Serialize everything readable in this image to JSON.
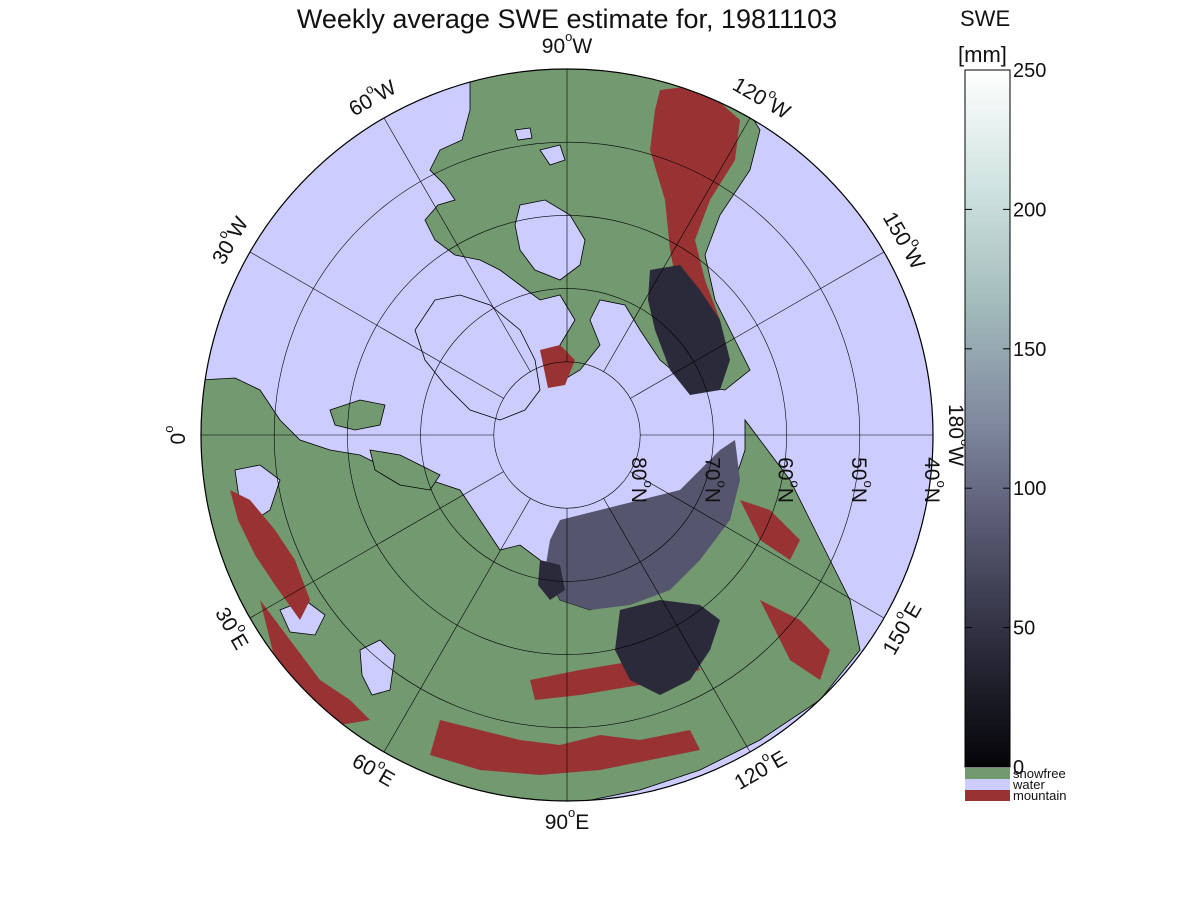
{
  "title": "Weekly average SWE estimate for, 19811103",
  "colors": {
    "water": "#ccccff",
    "snowfree": "#739970",
    "mountain": "#993333",
    "land_outline": "#000000"
  },
  "longitude_labels": [
    {
      "text": "90",
      "suffix": "W",
      "lon_deg": 90
    },
    {
      "text": "120",
      "suffix": "W",
      "lon_deg": 120
    },
    {
      "text": "150",
      "suffix": "W",
      "lon_deg": 150
    },
    {
      "text": "180",
      "suffix": "W",
      "lon_deg": 180
    },
    {
      "text": "150",
      "suffix": "E",
      "lon_deg": 210
    },
    {
      "text": "120",
      "suffix": "E",
      "lon_deg": 240
    },
    {
      "text": "90",
      "suffix": "E",
      "lon_deg": 270
    },
    {
      "text": "60",
      "suffix": "E",
      "lon_deg": 300
    },
    {
      "text": "30",
      "suffix": "E",
      "lon_deg": 330
    },
    {
      "text": "0",
      "suffix": "",
      "lon_deg": 0
    },
    {
      "text": "30",
      "suffix": "W",
      "lon_deg": 30
    },
    {
      "text": "60",
      "suffix": "W",
      "lon_deg": 60
    }
  ],
  "latitude_labels": [
    {
      "text": "80",
      "suffix": "N",
      "lat_deg": 80
    },
    {
      "text": "70",
      "suffix": "N",
      "lat_deg": 70
    },
    {
      "text": "60",
      "suffix": "N",
      "lat_deg": 60
    },
    {
      "text": "50",
      "suffix": "N",
      "lat_deg": 50
    },
    {
      "text": "40",
      "suffix": "N",
      "lat_deg": 40
    }
  ],
  "colorbar": {
    "label_line1": "SWE",
    "label_line2": "[mm]",
    "min": 0,
    "max": 250,
    "ticks": [
      "0",
      "50",
      "100",
      "150",
      "200",
      "250"
    ],
    "gradient_stops": [
      "#050508",
      "#2a2a3a",
      "#55556e",
      "#818ba0",
      "#a3bcbc",
      "#cfe3e0",
      "#ffffff"
    ]
  },
  "legend": [
    {
      "label": "snowfree",
      "color": "#739970"
    },
    {
      "label": "water",
      "color": "#ccccff"
    },
    {
      "label": "mountain",
      "color": "#993333"
    }
  ]
}
